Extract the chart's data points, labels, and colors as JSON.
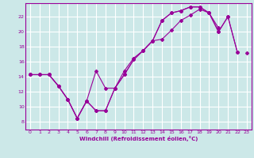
{
  "background_color": "#cce8e8",
  "grid_color": "#ffffff",
  "line_color": "#990099",
  "xlabel": "Windchill (Refroidissement éolien,°C)",
  "xlim": [
    -0.5,
    23.5
  ],
  "ylim": [
    7.0,
    23.8
  ],
  "yticks": [
    8,
    10,
    12,
    14,
    16,
    18,
    20,
    22
  ],
  "xticks": [
    0,
    1,
    2,
    3,
    4,
    5,
    6,
    7,
    8,
    9,
    10,
    11,
    12,
    13,
    14,
    15,
    16,
    17,
    18,
    19,
    20,
    21,
    22,
    23
  ],
  "line1_x": [
    0,
    1,
    2,
    3,
    4,
    5,
    6,
    7,
    8,
    9,
    10,
    11,
    12,
    13,
    14,
    15,
    16,
    17,
    18,
    19,
    20,
    21,
    22,
    23
  ],
  "line1_y": [
    14.3,
    14.3,
    14.3,
    12.8,
    11.0,
    8.5,
    10.8,
    9.5,
    9.5,
    12.5,
    14.3,
    16.3,
    17.5,
    18.8,
    21.5,
    22.5,
    22.8,
    23.3,
    23.3,
    22.5,
    20.0,
    22.0,
    17.3,
    null
  ],
  "line2_x": [
    0,
    1,
    2,
    3,
    4,
    5,
    6,
    7,
    8,
    9,
    10,
    11,
    12,
    13,
    14,
    15,
    16,
    17,
    18,
    19,
    20,
    21,
    22,
    23
  ],
  "line2_y": [
    14.3,
    14.3,
    14.3,
    12.8,
    11.0,
    8.5,
    10.8,
    14.8,
    12.5,
    12.5,
    14.8,
    16.5,
    17.5,
    18.8,
    21.5,
    22.5,
    22.8,
    23.3,
    23.3,
    22.5,
    20.0,
    22.0,
    17.3,
    null
  ],
  "line3_x": [
    0,
    1,
    2,
    3,
    4,
    5,
    6,
    7,
    8,
    9,
    10,
    11,
    12,
    13,
    14,
    15,
    16,
    17,
    18,
    19,
    20,
    21,
    22,
    23
  ],
  "line3_y": [
    14.3,
    14.3,
    14.3,
    12.8,
    11.0,
    8.5,
    10.8,
    9.5,
    9.5,
    12.5,
    14.3,
    16.3,
    17.5,
    18.8,
    19.0,
    20.2,
    21.5,
    22.2,
    23.0,
    22.5,
    20.5,
    null,
    null,
    17.2
  ]
}
